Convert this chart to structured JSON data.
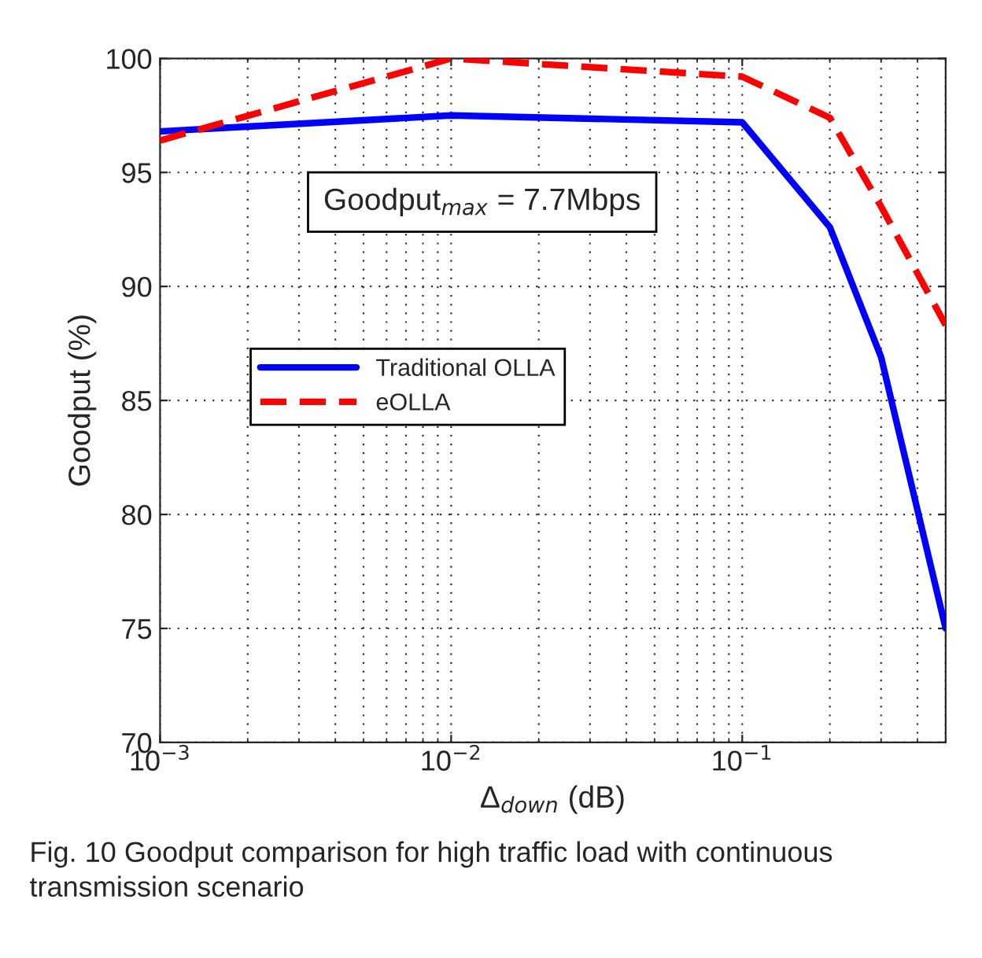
{
  "chart_data": {
    "type": "line",
    "xlabel": "Δ$_{down}$ (dB)",
    "ylabel": "Goodput (%)",
    "x": [
      0.001,
      0.01,
      0.1,
      0.2,
      0.3,
      0.5
    ],
    "series": [
      {
        "name": "Traditional OLLA",
        "color": "#0000ff",
        "line_style": "solid",
        "values": [
          96.8,
          97.5,
          97.2,
          92.6,
          86.9,
          75.0
        ]
      },
      {
        "name": "eOLLA",
        "color": "#ff0000",
        "line_style": "dashed",
        "values": [
          96.4,
          100.0,
          99.2,
          97.4,
          93.5,
          88.3
        ]
      }
    ],
    "log": "x",
    "xlim": [
      0.001,
      0.5
    ],
    "ylim": [
      70,
      100
    ],
    "xticks": [
      {
        "value": 0.001,
        "label": "10$^{−3}$"
      },
      {
        "value": 0.01,
        "label": "10$^{−2}$"
      },
      {
        "value": 0.1,
        "label": "10$^{−1}$"
      }
    ],
    "yticks": [
      70,
      75,
      80,
      85,
      90,
      95,
      100
    ],
    "grid": true,
    "legend": "center",
    "marker": "none",
    "annotations": [
      "Goodput$_{max}$ = 7.7Mbps",
      "Fig. 10 Goodput comparison for high traffic load with continuous transmission scenario"
    ]
  }
}
